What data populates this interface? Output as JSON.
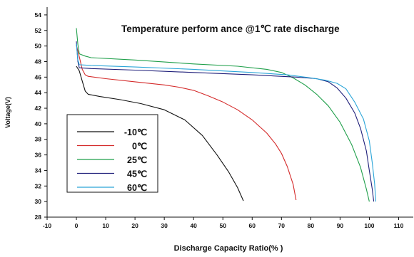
{
  "chart_data": {
    "type": "line",
    "title": "Temperature perform ance @1℃ rate discharge",
    "xlabel": "Discharge Capacity Ratio(% )",
    "ylabel": "Voltage(V)",
    "xlim": [
      -10,
      115
    ],
    "ylim": [
      28,
      55
    ],
    "x_ticks": [
      "-10",
      "0",
      "10",
      "20",
      "30",
      "40",
      "50",
      "60",
      "70",
      "80",
      "90",
      "100",
      "110"
    ],
    "y_ticks": [
      "28",
      "30",
      "32",
      "34",
      "36",
      "38",
      "40",
      "42",
      "44",
      "46",
      "48",
      "50",
      "52",
      "54"
    ],
    "grid": false,
    "legend_position": "lower-left",
    "series": [
      {
        "name": "-10℃",
        "color": "#111111",
        "points": [
          [
            0,
            47.4
          ],
          [
            1,
            46.8
          ],
          [
            2,
            45.5
          ],
          [
            3,
            44.2
          ],
          [
            4,
            43.8
          ],
          [
            8,
            43.5
          ],
          [
            15,
            43.1
          ],
          [
            22,
            42.6
          ],
          [
            30,
            41.8
          ],
          [
            37,
            40.5
          ],
          [
            43,
            38.5
          ],
          [
            48,
            36.0
          ],
          [
            52,
            33.8
          ],
          [
            55,
            31.8
          ],
          [
            57,
            30.1
          ]
        ]
      },
      {
        "name": "0℃",
        "color": "#d42a2a",
        "points": [
          [
            0,
            50.1
          ],
          [
            1,
            48.6
          ],
          [
            2,
            47.0
          ],
          [
            3,
            46.3
          ],
          [
            4,
            46.1
          ],
          [
            10,
            45.8
          ],
          [
            20,
            45.4
          ],
          [
            30,
            45.0
          ],
          [
            35,
            44.7
          ],
          [
            40,
            44.3
          ],
          [
            45,
            43.6
          ],
          [
            50,
            42.8
          ],
          [
            55,
            41.8
          ],
          [
            60,
            40.5
          ],
          [
            65,
            38.8
          ],
          [
            68,
            37.4
          ],
          [
            70,
            36.2
          ],
          [
            72,
            34.5
          ],
          [
            74,
            32.2
          ],
          [
            75,
            30.2
          ]
        ]
      },
      {
        "name": "25℃",
        "color": "#1f9f4a",
        "points": [
          [
            0,
            52.3
          ],
          [
            0.5,
            50.2
          ],
          [
            1,
            49.0
          ],
          [
            3,
            48.7
          ],
          [
            5,
            48.5
          ],
          [
            20,
            48.2
          ],
          [
            40,
            47.7
          ],
          [
            55,
            47.4
          ],
          [
            65,
            47.0
          ],
          [
            70,
            46.6
          ],
          [
            74,
            45.9
          ],
          [
            78,
            45.0
          ],
          [
            82,
            43.8
          ],
          [
            86,
            42.3
          ],
          [
            90,
            40.2
          ],
          [
            94,
            37.3
          ],
          [
            97,
            34.4
          ],
          [
            99,
            31.6
          ],
          [
            100,
            30.0
          ]
        ]
      },
      {
        "name": "45℃",
        "color": "#1f1f7a",
        "points": [
          [
            0,
            50.6
          ],
          [
            0.5,
            48.0
          ],
          [
            1,
            47.2
          ],
          [
            5,
            47.1
          ],
          [
            20,
            46.9
          ],
          [
            40,
            46.6
          ],
          [
            60,
            46.3
          ],
          [
            75,
            46.0
          ],
          [
            82,
            45.8
          ],
          [
            86,
            45.4
          ],
          [
            89,
            44.6
          ],
          [
            92,
            43.3
          ],
          [
            95,
            41.4
          ],
          [
            97,
            39.4
          ],
          [
            99,
            36.5
          ],
          [
            100,
            34.0
          ],
          [
            101,
            31.6
          ],
          [
            101.5,
            30.0
          ]
        ]
      },
      {
        "name": "60℃",
        "color": "#2aa5d8",
        "points": [
          [
            0,
            50.3
          ],
          [
            0.5,
            48.2
          ],
          [
            1,
            47.6
          ],
          [
            5,
            47.5
          ],
          [
            20,
            47.3
          ],
          [
            40,
            47.0
          ],
          [
            60,
            46.6
          ],
          [
            72,
            46.3
          ],
          [
            80,
            45.9
          ],
          [
            85,
            45.6
          ],
          [
            89,
            45.2
          ],
          [
            92,
            44.5
          ],
          [
            95,
            42.8
          ],
          [
            98,
            40.6
          ],
          [
            100,
            37.8
          ],
          [
            101,
            35.0
          ],
          [
            101.8,
            32.3
          ],
          [
            102.2,
            30.0
          ]
        ]
      }
    ]
  }
}
